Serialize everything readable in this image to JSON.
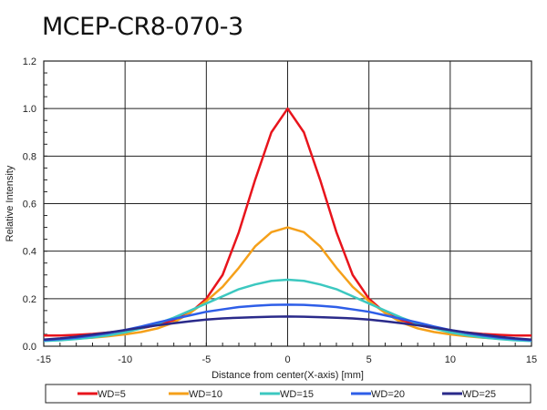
{
  "chart_data": {
    "type": "line",
    "title": "MCEP-CR8-070-3",
    "xlabel": "Distance from center(X-axis) [mm]",
    "ylabel": "Relative Intensity",
    "xlim": [
      -15,
      15
    ],
    "ylim": [
      0,
      1.2
    ],
    "xticks": [
      -15,
      -10,
      -5,
      0,
      5,
      10,
      15
    ],
    "xtick_labels": [
      "-15",
      "-10",
      "-5",
      "0",
      "5",
      "10",
      "15"
    ],
    "yticks": [
      0,
      0.2,
      0.4,
      0.6,
      0.8,
      1.0,
      1.2
    ],
    "ytick_labels": [
      "0.0",
      "0.2",
      "0.4",
      "0.6",
      "0.8",
      "1.0",
      "1.2"
    ],
    "grid": true,
    "legend_position": "bottom",
    "x": [
      -15,
      -14,
      -13,
      -12,
      -11,
      -10,
      -9,
      -8,
      -7,
      -6,
      -5,
      -4,
      -3,
      -2,
      -1,
      0,
      1,
      2,
      3,
      4,
      5,
      6,
      7,
      8,
      9,
      10,
      11,
      12,
      13,
      14,
      15
    ],
    "series": [
      {
        "name": "WD=5",
        "color": "#e8141c",
        "values": [
          0.045,
          0.045,
          0.048,
          0.052,
          0.058,
          0.065,
          0.075,
          0.09,
          0.11,
          0.14,
          0.2,
          0.3,
          0.48,
          0.7,
          0.9,
          1.0,
          0.9,
          0.7,
          0.48,
          0.3,
          0.2,
          0.14,
          0.11,
          0.09,
          0.075,
          0.065,
          0.058,
          0.052,
          0.048,
          0.045,
          0.045
        ]
      },
      {
        "name": "WD=10",
        "color": "#f5a01a",
        "values": [
          0.028,
          0.03,
          0.032,
          0.036,
          0.042,
          0.05,
          0.06,
          0.075,
          0.1,
          0.14,
          0.19,
          0.25,
          0.33,
          0.42,
          0.48,
          0.5,
          0.48,
          0.42,
          0.33,
          0.25,
          0.19,
          0.14,
          0.1,
          0.075,
          0.06,
          0.05,
          0.042,
          0.036,
          0.032,
          0.03,
          0.028
        ]
      },
      {
        "name": "WD=15",
        "color": "#3cc8c0",
        "values": [
          0.022,
          0.025,
          0.03,
          0.037,
          0.046,
          0.058,
          0.075,
          0.095,
          0.12,
          0.15,
          0.18,
          0.21,
          0.24,
          0.26,
          0.275,
          0.28,
          0.275,
          0.26,
          0.24,
          0.21,
          0.18,
          0.15,
          0.12,
          0.095,
          0.075,
          0.058,
          0.046,
          0.037,
          0.03,
          0.025,
          0.022
        ]
      },
      {
        "name": "WD=20",
        "color": "#2e5ee8",
        "values": [
          0.025,
          0.03,
          0.036,
          0.045,
          0.055,
          0.068,
          0.083,
          0.1,
          0.115,
          0.13,
          0.145,
          0.155,
          0.165,
          0.17,
          0.174,
          0.175,
          0.174,
          0.17,
          0.165,
          0.155,
          0.145,
          0.13,
          0.115,
          0.1,
          0.083,
          0.068,
          0.055,
          0.045,
          0.036,
          0.03,
          0.025
        ]
      },
      {
        "name": "WD=25",
        "color": "#2a2a8a",
        "values": [
          0.028,
          0.033,
          0.04,
          0.049,
          0.058,
          0.068,
          0.078,
          0.088,
          0.097,
          0.105,
          0.112,
          0.117,
          0.12,
          0.122,
          0.124,
          0.125,
          0.124,
          0.122,
          0.12,
          0.117,
          0.112,
          0.105,
          0.097,
          0.088,
          0.078,
          0.068,
          0.058,
          0.049,
          0.04,
          0.033,
          0.028
        ]
      }
    ]
  }
}
